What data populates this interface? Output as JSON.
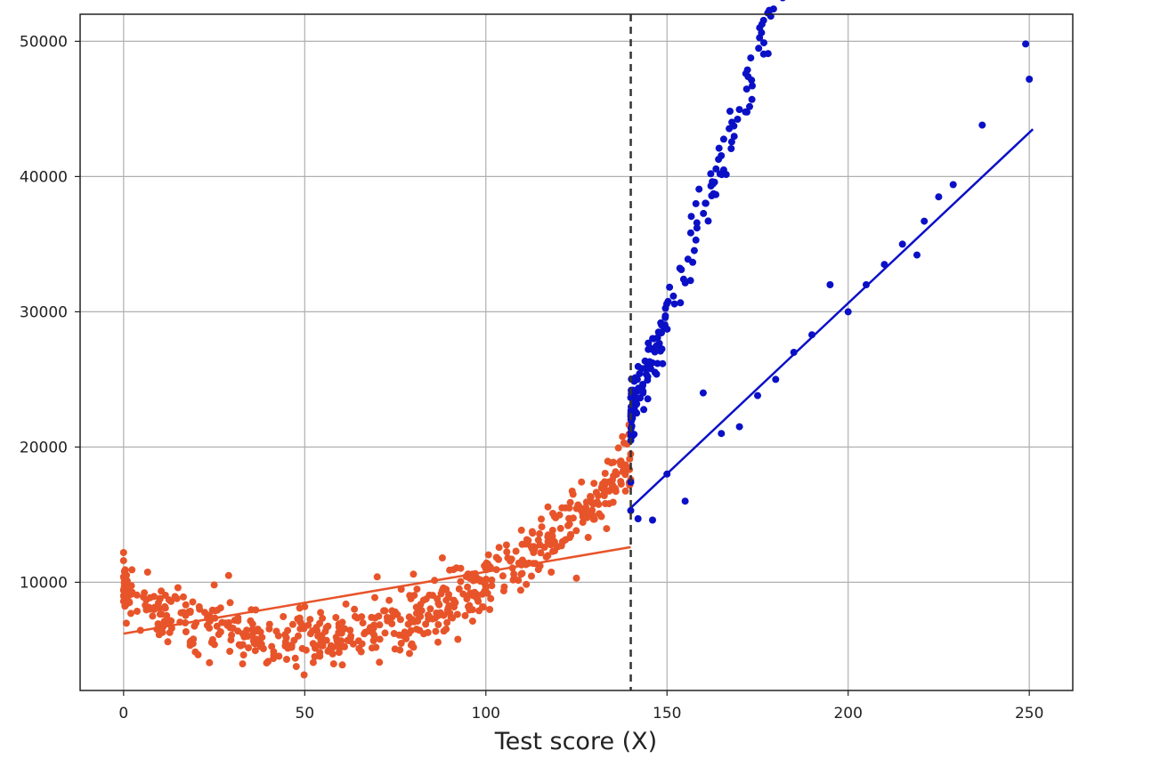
{
  "chart_data": {
    "type": "scatter",
    "xlabel": "Test score (X)",
    "ylabel": "",
    "xlim": [
      -12,
      262
    ],
    "ylim": [
      2000,
      52000
    ],
    "xticks": [
      0,
      50,
      100,
      150,
      200,
      250
    ],
    "yticks": [
      10000,
      20000,
      30000,
      40000,
      50000
    ],
    "grid": true,
    "threshold_x": 140,
    "colors": {
      "left": "#e8542a",
      "right": "#0b10c6",
      "threshold": "#333333"
    },
    "series": [
      {
        "color_key": "left",
        "x_range": [
          0,
          140
        ],
        "point_count": 620,
        "trend_curve": {
          "coef": [
            9300,
            -150,
            1.56
          ]
        },
        "sample_points": [
          [
            0,
            12200
          ],
          [
            0,
            11600
          ],
          [
            0,
            10400
          ],
          [
            0,
            9400
          ],
          [
            0,
            8600
          ],
          [
            1,
            10100
          ],
          [
            2,
            7700
          ],
          [
            6,
            8300
          ],
          [
            8,
            7500
          ],
          [
            10,
            8800
          ],
          [
            15,
            9600
          ],
          [
            20,
            7000
          ],
          [
            25,
            9800
          ],
          [
            29,
            10500
          ],
          [
            45,
            4300
          ],
          [
            50,
            8200
          ],
          [
            55,
            5300
          ],
          [
            60,
            5200
          ],
          [
            65,
            5100
          ],
          [
            70,
            10400
          ],
          [
            80,
            10600
          ],
          [
            88,
            11800
          ],
          [
            90,
            10900
          ],
          [
            100,
            11000
          ],
          [
            110,
            12800
          ],
          [
            118,
            13000
          ],
          [
            122,
            15500
          ],
          [
            125,
            10300
          ],
          [
            129,
            16300
          ],
          [
            133,
            17300
          ],
          [
            137,
            18900
          ],
          [
            140,
            17600
          ]
        ],
        "fit_line": [
          [
            0,
            6200
          ],
          [
            140,
            12600
          ]
        ]
      },
      {
        "color_key": "right",
        "x_range": [
          140,
          251
        ],
        "point_count": 260,
        "trend_curve": {
          "coef": [
            -48000,
            300,
            1.45
          ]
        },
        "sample_points": [
          [
            140,
            15300
          ],
          [
            140,
            17400
          ],
          [
            142,
            14700
          ],
          [
            146,
            14600
          ],
          [
            150,
            18000
          ],
          [
            155,
            16000
          ],
          [
            160,
            24000
          ],
          [
            165,
            21000
          ],
          [
            170,
            21500
          ],
          [
            175,
            23800
          ],
          [
            180,
            25000
          ],
          [
            185,
            27000
          ],
          [
            190,
            28300
          ],
          [
            195,
            32000
          ],
          [
            200,
            30000
          ],
          [
            205,
            32000
          ],
          [
            210,
            33500
          ],
          [
            215,
            35000
          ],
          [
            219,
            34200
          ],
          [
            221,
            36700
          ],
          [
            225,
            38500
          ],
          [
            229,
            39400
          ],
          [
            237,
            43800
          ],
          [
            249,
            49800
          ],
          [
            250,
            47200
          ]
        ],
        "fit_line": [
          [
            140,
            15500
          ],
          [
            251,
            43500
          ]
        ]
      }
    ]
  }
}
